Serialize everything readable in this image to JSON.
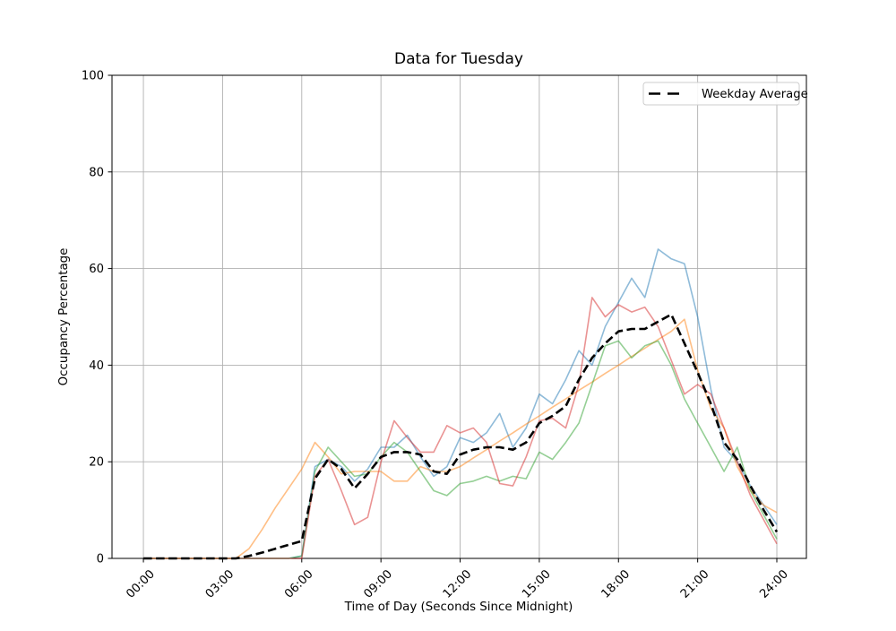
{
  "chart_data": {
    "type": "line",
    "title": "Data for Tuesday",
    "xlabel": "Time of Day (Seconds Since Midnight)",
    "ylabel": "Occupancy Percentage",
    "xlim_hours": [
      -1.19,
      25.12
    ],
    "ylim": [
      0,
      100
    ],
    "grid": true,
    "grid_color": "#b0b0b0",
    "background_color": "#ffffff",
    "legend": {
      "position": "upper right",
      "entries": [
        {
          "label": "Weekday Average",
          "color": "#000000",
          "dashed": true
        }
      ]
    },
    "x_ticks": [
      {
        "hours": 0,
        "label": "00:00"
      },
      {
        "hours": 3,
        "label": "03:00"
      },
      {
        "hours": 6,
        "label": "06:00"
      },
      {
        "hours": 9,
        "label": "09:00"
      },
      {
        "hours": 12,
        "label": "12:00"
      },
      {
        "hours": 15,
        "label": "15:00"
      },
      {
        "hours": 18,
        "label": "18:00"
      },
      {
        "hours": 21,
        "label": "21:00"
      },
      {
        "hours": 24,
        "label": "24:00"
      }
    ],
    "y_ticks": [
      {
        "value": 0,
        "label": "0"
      },
      {
        "value": 20,
        "label": "20"
      },
      {
        "value": 40,
        "label": "40"
      },
      {
        "value": 60,
        "label": "60"
      },
      {
        "value": 80,
        "label": "80"
      },
      {
        "value": 100,
        "label": "100"
      }
    ],
    "x_hours": [
      0,
      0.5,
      1,
      1.5,
      2,
      2.5,
      3,
      3.5,
      4,
      4.5,
      5,
      5.5,
      6,
      6.5,
      7,
      7.5,
      8,
      8.5,
      9,
      9.5,
      10,
      10.5,
      11,
      11.5,
      12,
      12.5,
      13,
      13.5,
      14,
      14.5,
      15,
      15.5,
      16,
      16.5,
      17,
      17.5,
      18,
      18.5,
      19,
      19.5,
      20,
      20.5,
      21,
      21.5,
      22,
      22.5,
      23,
      23.5,
      24
    ],
    "series": [
      {
        "name": "weekday-series-1",
        "color": "#1f77b4",
        "alpha": 0.5,
        "line_width": 1.6,
        "dashed": false,
        "values": [
          0,
          0,
          0,
          0,
          0,
          0,
          0,
          0,
          0,
          0,
          0,
          0,
          0.5,
          19,
          20.5,
          19,
          16,
          18.5,
          23,
          23,
          25.5,
          21,
          17,
          19,
          25,
          24,
          26,
          30,
          23,
          27,
          34,
          32,
          37,
          43,
          40,
          48,
          53,
          58,
          54,
          64,
          62,
          61,
          50,
          35,
          23,
          20,
          15,
          11,
          7
        ]
      },
      {
        "name": "weekday-series-2",
        "color": "#ff7f0e",
        "alpha": 0.5,
        "line_width": 1.6,
        "dashed": false,
        "values": [
          0,
          0,
          0,
          0,
          0,
          0,
          0,
          0,
          2,
          6,
          10.5,
          14.5,
          18.5,
          24,
          21,
          17.5,
          18,
          18,
          18,
          16,
          16,
          19,
          18,
          18,
          19,
          20.8,
          22.5,
          24.3,
          26,
          27.8,
          29.5,
          31.3,
          33,
          34.8,
          36.5,
          38.3,
          40,
          41.8,
          43.5,
          45.3,
          47,
          49.5,
          39,
          31,
          27,
          19,
          14,
          11,
          9.5
        ]
      },
      {
        "name": "weekday-series-3",
        "color": "#2ca02c",
        "alpha": 0.5,
        "line_width": 1.6,
        "dashed": false,
        "values": [
          0,
          0,
          0,
          0,
          0,
          0,
          0,
          0,
          0,
          0,
          0,
          0,
          0.5,
          18,
          23,
          20,
          17,
          17.5,
          21,
          24,
          22,
          18,
          14,
          13,
          15.5,
          16,
          17,
          16,
          17,
          16.5,
          22,
          20.5,
          24,
          28,
          36,
          44,
          45,
          41.5,
          44,
          45,
          40,
          33,
          28,
          23,
          18,
          23,
          14,
          9,
          4
        ]
      },
      {
        "name": "weekday-series-4",
        "color": "#d62728",
        "alpha": 0.5,
        "line_width": 1.6,
        "dashed": false,
        "values": [
          0,
          0,
          0,
          0,
          0,
          0,
          0,
          0,
          0,
          0,
          0,
          0,
          0,
          17,
          20.5,
          14,
          7,
          8.5,
          20,
          28.5,
          25,
          22,
          22,
          27.5,
          26,
          27,
          24,
          15.5,
          15,
          21,
          28.5,
          29,
          27,
          36,
          54,
          50,
          52.5,
          51,
          52,
          48,
          41,
          34,
          36,
          34,
          27,
          20,
          13,
          8,
          3
        ]
      },
      {
        "name": "Weekday Average",
        "color": "#000000",
        "alpha": 1,
        "line_width": 2.6,
        "dashed": true,
        "values": [
          0,
          0,
          0,
          0,
          0,
          0,
          0,
          0,
          0.5,
          1.2,
          2,
          2.8,
          3.6,
          16.5,
          20.5,
          18.5,
          14.5,
          17.5,
          21,
          22,
          22,
          21.5,
          18,
          17.5,
          21.5,
          22.5,
          23,
          23,
          22.5,
          24,
          28,
          29.5,
          31.5,
          37,
          41.5,
          44.5,
          47,
          47.5,
          47.5,
          49,
          50.5,
          44.5,
          38.5,
          32,
          24,
          20.5,
          15,
          10,
          5.5
        ]
      }
    ]
  }
}
